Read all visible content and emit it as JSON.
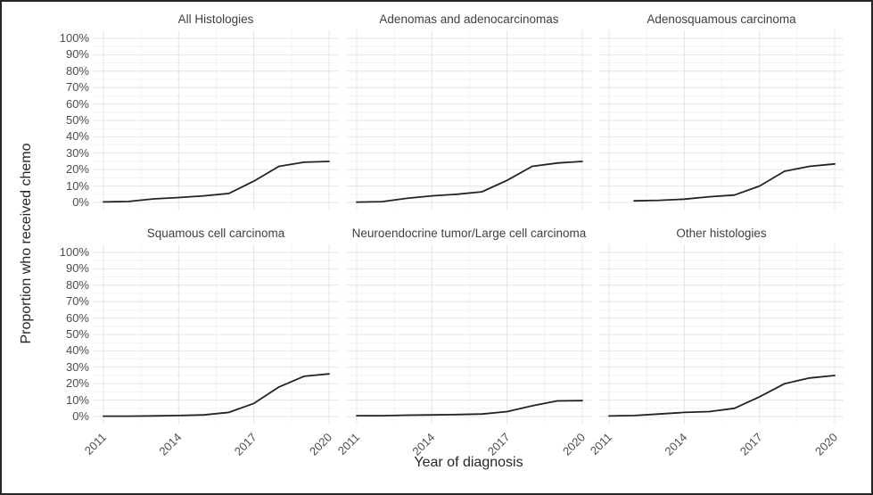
{
  "figure": {
    "y_axis_title": "Proportion who received chemo",
    "x_axis_title": "Year of diagnosis"
  },
  "chart_data": {
    "type": "line",
    "facet_layout": {
      "rows": 2,
      "cols": 3,
      "note": "shared axes, ggplot-style facet grid"
    },
    "x_axis": {
      "title": "Year of diagnosis",
      "tick_labels": [
        "2011",
        "2014",
        "2017",
        "2020"
      ],
      "tick_values": [
        2011,
        2014,
        2017,
        2020
      ],
      "minor_tick_values": [
        2012.5,
        2015.5,
        2018.5
      ],
      "range": [
        2011,
        2020
      ],
      "tick_label_angle_deg": 45
    },
    "y_axis": {
      "title": "Proportion who received chemo",
      "tick_labels": [
        "0%",
        "10%",
        "20%",
        "30%",
        "40%",
        "50%",
        "60%",
        "70%",
        "80%",
        "90%",
        "100%"
      ],
      "tick_values": [
        0,
        10,
        20,
        30,
        40,
        50,
        60,
        70,
        80,
        90,
        100
      ],
      "minor_step": 5,
      "range": [
        0,
        100
      ]
    },
    "style": {
      "line_color": "#232323",
      "line_width": 1.8,
      "grid_major_color": "#e4e4e4",
      "grid_minor_color": "#f1f1f1",
      "tick_label_color": "#4d4d4d",
      "axis_title_color": "#262626",
      "strip_text_color": "#404040",
      "background": "#ffffff",
      "border_color": "#262626",
      "grid": "on"
    },
    "panels": [
      {
        "title": "All Histologies",
        "points": [
          [
            2011,
            0.3
          ],
          [
            2012,
            0.6
          ],
          [
            2013,
            2.2
          ],
          [
            2014,
            3
          ],
          [
            2015,
            4
          ],
          [
            2016,
            5.5
          ],
          [
            2017,
            13
          ],
          [
            2018,
            22
          ],
          [
            2019,
            24.5
          ],
          [
            2020,
            25
          ]
        ]
      },
      {
        "title": "Adenomas and adenocarcinomas",
        "points": [
          [
            2011,
            0.2
          ],
          [
            2012,
            0.5
          ],
          [
            2013,
            2.5
          ],
          [
            2014,
            4
          ],
          [
            2015,
            5
          ],
          [
            2016,
            6.5
          ],
          [
            2017,
            13.5
          ],
          [
            2018,
            22
          ],
          [
            2019,
            24
          ],
          [
            2020,
            25
          ]
        ]
      },
      {
        "title": "Adenosquamous carcinoma",
        "points": [
          [
            2012,
            1
          ],
          [
            2013,
            1.3
          ],
          [
            2014,
            2
          ],
          [
            2015,
            3.5
          ],
          [
            2016,
            4.5
          ],
          [
            2017,
            10
          ],
          [
            2018,
            19
          ],
          [
            2019,
            22
          ],
          [
            2020,
            23.5
          ]
        ]
      },
      {
        "title": "Squamous cell carcinoma",
        "points": [
          [
            2011,
            0.2
          ],
          [
            2012,
            0.2
          ],
          [
            2013,
            0.4
          ],
          [
            2014,
            0.6
          ],
          [
            2015,
            1
          ],
          [
            2016,
            2.5
          ],
          [
            2017,
            8
          ],
          [
            2018,
            18
          ],
          [
            2019,
            24.5
          ],
          [
            2020,
            26
          ]
        ]
      },
      {
        "title": "Neuroendocrine tumor/Large cell carcinoma",
        "points": [
          [
            2011,
            0.5
          ],
          [
            2012,
            0.5
          ],
          [
            2013,
            0.8
          ],
          [
            2014,
            1
          ],
          [
            2015,
            1.2
          ],
          [
            2016,
            1.5
          ],
          [
            2017,
            3
          ],
          [
            2018,
            6.5
          ],
          [
            2019,
            9.5
          ],
          [
            2020,
            9.7
          ]
        ]
      },
      {
        "title": "Other histologies",
        "points": [
          [
            2011,
            0.3
          ],
          [
            2012,
            0.6
          ],
          [
            2013,
            1.5
          ],
          [
            2014,
            2.5
          ],
          [
            2015,
            3
          ],
          [
            2016,
            5
          ],
          [
            2017,
            12
          ],
          [
            2018,
            20
          ],
          [
            2019,
            23.5
          ],
          [
            2020,
            25
          ]
        ]
      }
    ]
  }
}
